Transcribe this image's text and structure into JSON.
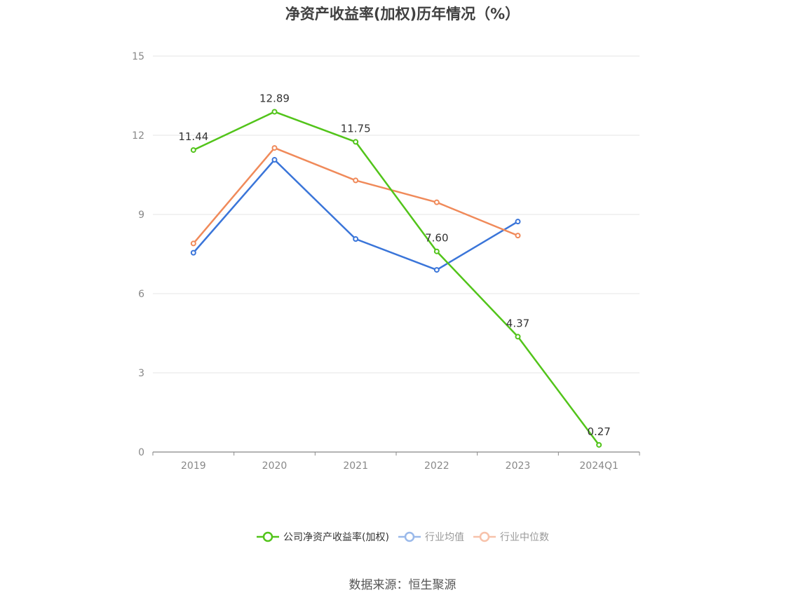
{
  "chart_data": {
    "type": "line",
    "title": "净资产收益率(加权)历年情况（%）",
    "categories": [
      "2019",
      "2020",
      "2021",
      "2022",
      "2023",
      "2024Q1"
    ],
    "ylim": [
      0,
      15
    ],
    "yticks": [
      0,
      3,
      6,
      9,
      12,
      15
    ],
    "grid": true,
    "legend_position": "bottom",
    "series": [
      {
        "name": "公司净资产收益率(加权)",
        "color": "#52c41a",
        "values": [
          11.44,
          12.89,
          11.75,
          7.6,
          4.37,
          0.27
        ],
        "labels": [
          "11.44",
          "12.89",
          "11.75",
          "7.60",
          "4.37",
          "0.27"
        ]
      },
      {
        "name": "行业均值",
        "color": "#3a75d9",
        "values": [
          7.55,
          11.07,
          8.07,
          6.9,
          8.73,
          null
        ]
      },
      {
        "name": "行业中位数",
        "color": "#f08a5a",
        "values": [
          7.9,
          11.52,
          10.29,
          9.46,
          8.2,
          null
        ]
      }
    ],
    "legend_inactive_colors": [
      "#52c41a",
      "#9ab9ea",
      "#f7c2aa"
    ],
    "legend_text_colors": [
      "#333333",
      "#999999",
      "#999999"
    ],
    "source": "数据来源：恒生聚源"
  }
}
